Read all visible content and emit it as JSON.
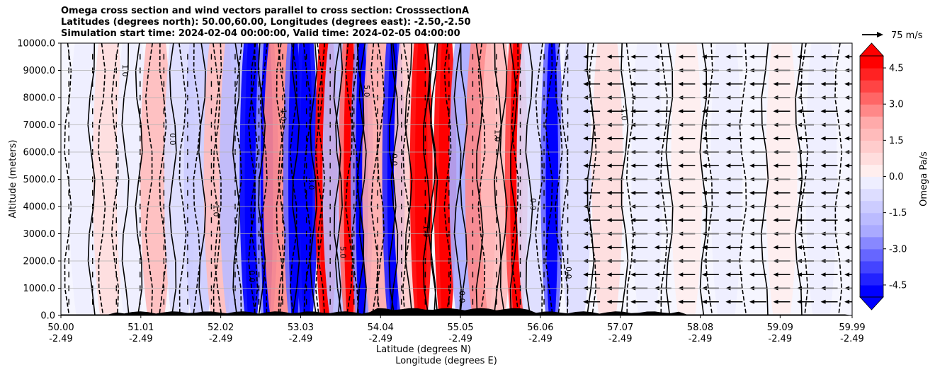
{
  "chart_data": {
    "type": "heatmap",
    "title_lines": [
      "Omega cross section and wind vectors parallel to cross section: CrosssectionA",
      "Latitudes (degrees north): 50.00,60.00, Longitudes (degrees east): -2.50,-2.50",
      "Simulation start time: 2024-02-04 00:00:00, Valid time: 2024-02-05 04:00:00"
    ],
    "xlabel_lines": [
      "Latitude (degrees N)",
      "Longitude (degrees E)"
    ],
    "ylabel": "Altitude (meters)",
    "x_ticks": [
      {
        "lat": "50.00",
        "lon": "-2.49",
        "frac": 0.0
      },
      {
        "lat": "51.01",
        "lon": "-2.49",
        "frac": 0.101
      },
      {
        "lat": "52.02",
        "lon": "-2.49",
        "frac": 0.202
      },
      {
        "lat": "53.03",
        "lon": "-2.49",
        "frac": 0.303
      },
      {
        "lat": "54.04",
        "lon": "-2.49",
        "frac": 0.404
      },
      {
        "lat": "55.05",
        "lon": "-2.49",
        "frac": 0.505
      },
      {
        "lat": "56.06",
        "lon": "-2.49",
        "frac": 0.606
      },
      {
        "lat": "57.07",
        "lon": "-2.49",
        "frac": 0.707
      },
      {
        "lat": "58.08",
        "lon": "-2.49",
        "frac": 0.808
      },
      {
        "lat": "59.09",
        "lon": "-2.49",
        "frac": 0.909
      },
      {
        "lat": "59.99",
        "lon": "-2.49",
        "frac": 1.0
      }
    ],
    "y_ticks": [
      "0.0",
      "1000.0",
      "2000.0",
      "3000.0",
      "4000.0",
      "5000.0",
      "6000.0",
      "7000.0",
      "8000.0",
      "9000.0",
      "10000.0"
    ],
    "ylim": [
      0,
      10000
    ],
    "grid": "horizontal",
    "colorbar": {
      "label": "Omega Pa/s",
      "ticks": [
        "4.5",
        "3.0",
        "1.5",
        "0.0",
        "-1.5",
        "-3.0",
        "-4.5"
      ],
      "range": [
        -5,
        5
      ],
      "extend": "both",
      "colors": [
        "#0000ff",
        "#2222ff",
        "#4444ff",
        "#6666ff",
        "#8888ff",
        "#aaaaff",
        "#bbbbff",
        "#ccccff",
        "#ddddff",
        "#eeeeff",
        "#ffeeee",
        "#ffdddd",
        "#ffcccc",
        "#ffbbbb",
        "#ffaaaa",
        "#ff8888",
        "#ff6666",
        "#ff4444",
        "#ff2222",
        "#ff0000"
      ]
    },
    "wind_reference": {
      "label": "75 m/s"
    },
    "omega_bands": [
      {
        "x": 50.3,
        "v": -0.5
      },
      {
        "x": 50.6,
        "v": 0.5
      },
      {
        "x": 50.9,
        "v": -0.5
      },
      {
        "x": 51.2,
        "v": 1.5
      },
      {
        "x": 51.5,
        "v": -1.0
      },
      {
        "x": 51.75,
        "v": -1.5
      },
      {
        "x": 52.0,
        "v": 1.5
      },
      {
        "x": 52.2,
        "v": -2.0
      },
      {
        "x": 52.4,
        "v": -5.0
      },
      {
        "x": 52.6,
        "v": -3.0
      },
      {
        "x": 52.75,
        "v": 2.5
      },
      {
        "x": 52.95,
        "v": -3.5
      },
      {
        "x": 53.1,
        "v": -5.0
      },
      {
        "x": 53.35,
        "v": 5.0
      },
      {
        "x": 53.5,
        "v": -2.0
      },
      {
        "x": 53.65,
        "v": 3.0
      },
      {
        "x": 53.8,
        "v": -3.0
      },
      {
        "x": 54.0,
        "v": 2.0
      },
      {
        "x": 54.2,
        "v": -4.5
      },
      {
        "x": 54.4,
        "v": 1.0
      },
      {
        "x": 54.55,
        "v": 5.0
      },
      {
        "x": 54.85,
        "v": 5.0
      },
      {
        "x": 55.1,
        "v": -2.5
      },
      {
        "x": 55.3,
        "v": 2.5
      },
      {
        "x": 55.5,
        "v": 1.5
      },
      {
        "x": 55.75,
        "v": 3.5
      },
      {
        "x": 55.95,
        "v": -1.0
      },
      {
        "x": 56.2,
        "v": -3.5
      },
      {
        "x": 56.5,
        "v": -1.0
      },
      {
        "x": 56.9,
        "v": 0.5
      },
      {
        "x": 57.4,
        "v": -0.5
      },
      {
        "x": 57.9,
        "v": 0.3
      },
      {
        "x": 58.4,
        "v": -0.5
      },
      {
        "x": 59.1,
        "v": 0.3
      },
      {
        "x": 59.6,
        "v": -0.3
      }
    ],
    "contour_labels": [
      "1.0",
      "0.0",
      "-1.0",
      "0.0",
      "1.0",
      "3.0",
      "5.0",
      "5.0",
      "0.0",
      "-1.0",
      "0.0",
      "1.0",
      "0.0",
      "0.0",
      "-1.0"
    ],
    "wind_vectors": "westward arrows north of 56.06 N, near-vertical flow in the central section"
  }
}
